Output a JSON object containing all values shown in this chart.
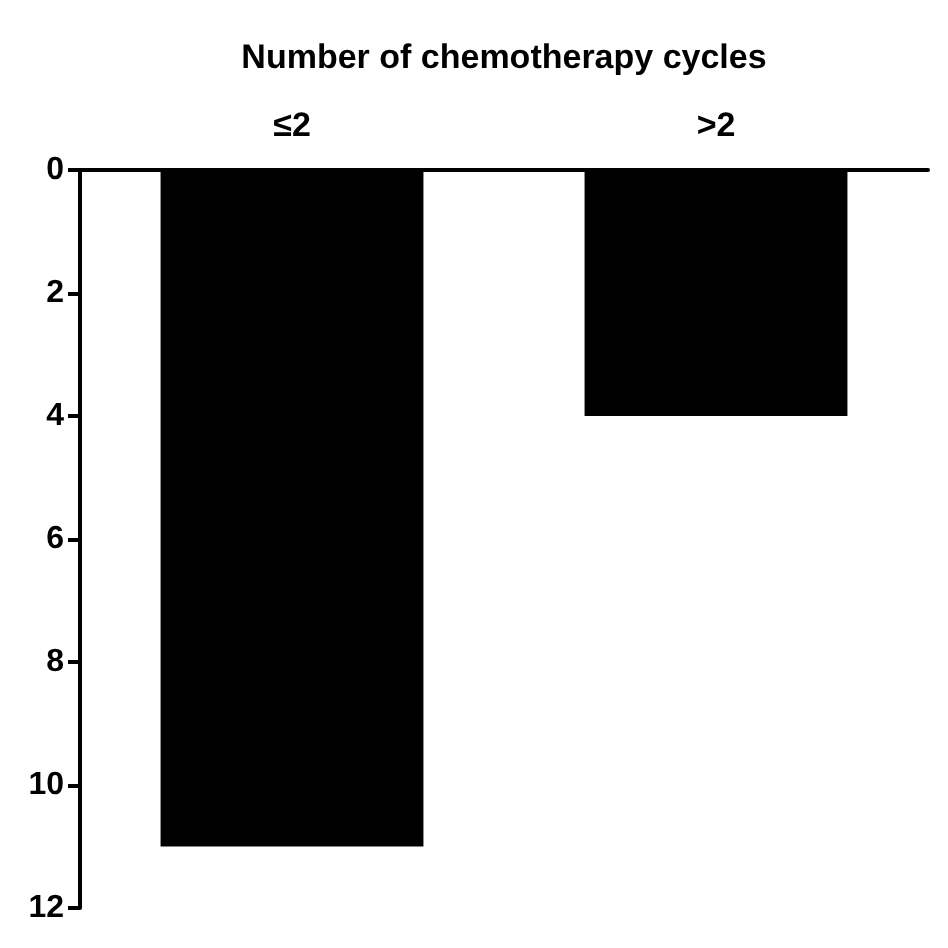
{
  "chart_data": {
    "type": "bar",
    "xlabel": "Number of chemotherapy cycles",
    "categories": [
      "≤2",
      ">2"
    ],
    "values": [
      11,
      4
    ],
    "color": "#000000",
    "ylim": [
      12,
      0
    ],
    "yticks": [
      0,
      2,
      4,
      6,
      8,
      10,
      12
    ],
    "grid": false
  }
}
